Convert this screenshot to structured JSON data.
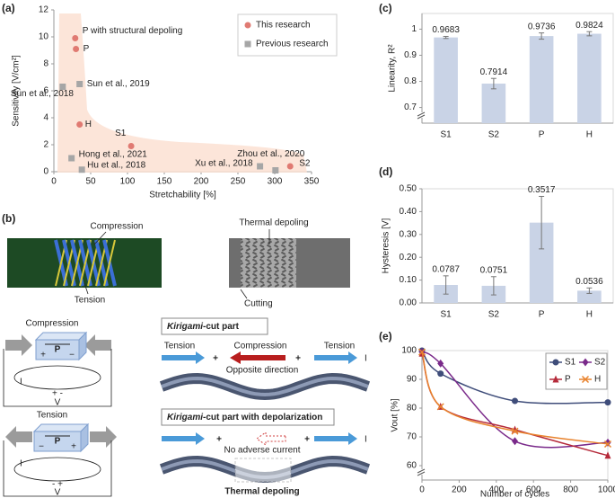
{
  "chart_data": [
    {
      "label": "(a)",
      "type": "scatter",
      "xlabel": "Stretchability [%]",
      "ylabel": "Sensitivity [V/cm²]",
      "xlim": [
        0,
        350
      ],
      "xticks": [
        0,
        50,
        100,
        150,
        200,
        250,
        300,
        350
      ],
      "ylim": [
        0,
        12
      ],
      "yticks": [
        0,
        2,
        4,
        6,
        8,
        10,
        12
      ],
      "legend": "upper right",
      "series": [
        {
          "name": "This research",
          "color": "#e07a72",
          "marker": "circle",
          "x": [
            29,
            30,
            35,
            105,
            321
          ],
          "values": [
            9.9,
            9.1,
            3.5,
            1.9,
            0.4
          ],
          "point_labels": [
            "P with structural depoling",
            "P",
            "H",
            "S1",
            "S2"
          ]
        },
        {
          "name": "Previous research",
          "color": "#a6a6a6",
          "marker": "square",
          "x": [
            35,
            12,
            24,
            38,
            280,
            301
          ],
          "values": [
            6.5,
            6.3,
            1.0,
            0.15,
            0.4,
            0.1
          ],
          "point_labels": [
            "Sun et al., 2019",
            "Sun et al., 2018",
            "Hong et al., 2021",
            "Hu et al., 2018",
            "Xu et al., 2018",
            "Zhou et al., 2020"
          ]
        }
      ]
    },
    {
      "label": "(c)",
      "type": "bar",
      "ylabel": "Linearity, R²",
      "categories": [
        "S1",
        "S2",
        "P",
        "H"
      ],
      "values": [
        0.9683,
        0.7914,
        0.9736,
        0.9824
      ],
      "errors": [
        0.004,
        0.02,
        0.012,
        0.008
      ],
      "color": "#c9d3e6",
      "ylim": [
        0.64,
        1.06
      ],
      "yticks": [
        0.7,
        0.8,
        0.9,
        1
      ],
      "axis_break": true
    },
    {
      "label": "(d)",
      "type": "bar",
      "ylabel": "Hysteresis [V]",
      "categories": [
        "S1",
        "S2",
        "P",
        "H"
      ],
      "values": [
        0.0787,
        0.0751,
        0.3517,
        0.0536
      ],
      "errors": [
        0.04,
        0.04,
        0.115,
        0.012
      ],
      "color": "#c9d3e6",
      "ylim": [
        0,
        0.5
      ],
      "yticks": [
        {
          "value": 0,
          "label": "0.00"
        },
        {
          "value": 0.1,
          "label": "0.10"
        },
        {
          "value": 0.2,
          "label": "0.20"
        },
        {
          "value": 0.3,
          "label": "0.30"
        },
        {
          "value": 0.4,
          "label": "0.40"
        },
        {
          "value": 0.5,
          "label": "0.50"
        }
      ],
      "axis_break": false
    },
    {
      "label": "(e)",
      "type": "line",
      "xlabel": "Number of cycles",
      "ylabel": "Vout [%]",
      "x": [
        0,
        100,
        500,
        1000
      ],
      "xlim": [
        0,
        1000
      ],
      "xticks": [
        0,
        200,
        400,
        600,
        800,
        1000
      ],
      "ylim": [
        55,
        100
      ],
      "yticks": [
        60,
        70,
        80,
        90,
        100
      ],
      "axis_break": true,
      "legend": "upper right",
      "series": [
        {
          "name": "S1",
          "color": "#3f4d7a",
          "marker": "circle",
          "values": [
            100,
            92,
            82.5,
            82
          ]
        },
        {
          "name": "S2",
          "color": "#7a2a8a",
          "marker": "diamond",
          "values": [
            99.5,
            95.5,
            68.5,
            68
          ]
        },
        {
          "name": "P",
          "color": "#b52a3a",
          "marker": "triangle",
          "values": [
            99,
            80.5,
            72.5,
            63.5
          ]
        },
        {
          "name": "H",
          "color": "#e8832e",
          "marker": "x",
          "values": [
            99.5,
            80.5,
            72,
            67.5
          ]
        }
      ]
    }
  ],
  "diagram": {
    "label": "(b)",
    "fem": {
      "compression": "Compression",
      "tension": "Tension"
    },
    "depoling": {
      "thermal": "Thermal depoling",
      "cutting": "Cutting"
    },
    "compression_state": {
      "title": "Compression",
      "pole": "P",
      "left": "+",
      "right": "−",
      "current": "I",
      "meter": "+ -",
      "voltage": "V"
    },
    "tension_state": {
      "title": "Tension",
      "pole": "P",
      "left": "−",
      "right": "+",
      "current": "I",
      "meter": "- +",
      "voltage": "V"
    },
    "kirigami": {
      "italic": "Kirigami",
      "rest": "-cut part",
      "left": "Tension",
      "middle": "Compression",
      "right": "Tension",
      "sign1": "+",
      "sign2": "+",
      "current": "I",
      "note": "Opposite direction"
    },
    "kirigami_depol": {
      "italic": "Kirigami",
      "rest": "-cut part with depolarization",
      "sign1": "+",
      "sign2": "+",
      "current": "I",
      "note": "No adverse current",
      "bottom": "Thermal depoling"
    }
  }
}
